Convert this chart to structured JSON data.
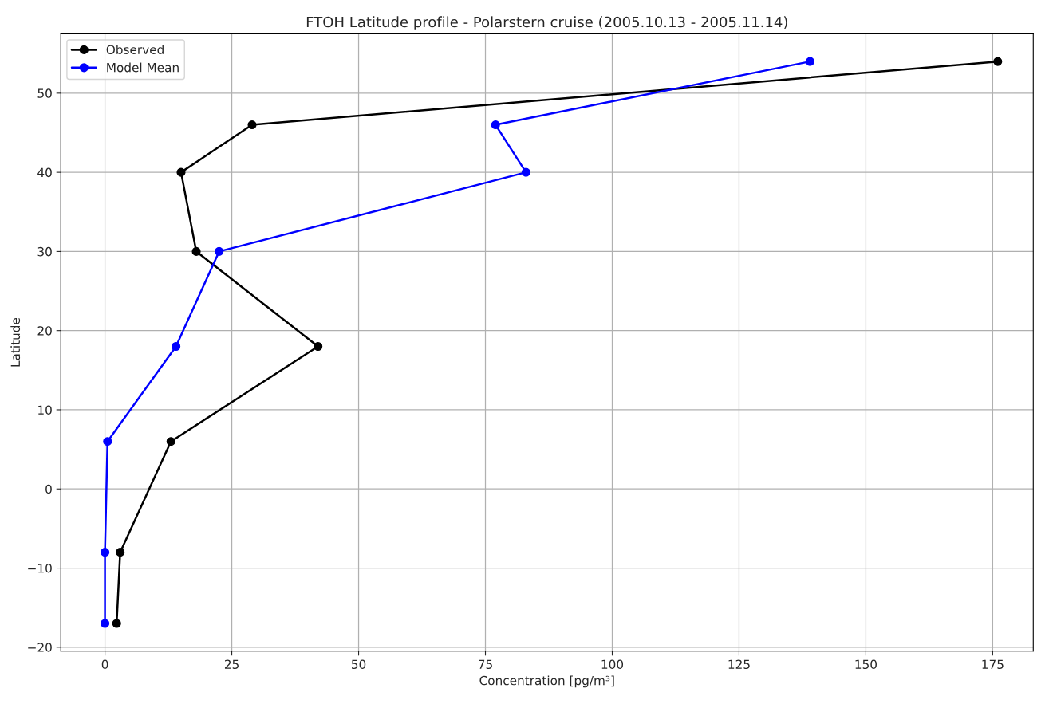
{
  "chart_data": {
    "type": "line",
    "title": "FTOH Latitude profile - Polarstern cruise (2005.10.13 - 2005.11.14)",
    "xlabel": "Concentration [pg/m³]",
    "ylabel": "Latitude",
    "series": [
      {
        "name": "Observed",
        "color": "#000000",
        "x": [
          176,
          29,
          15,
          18,
          42,
          13,
          3,
          2.3
        ],
        "values": [
          54,
          46,
          40,
          30,
          18,
          6,
          -8,
          -17
        ]
      },
      {
        "name": "Model Mean",
        "color": "#0000ff",
        "x": [
          139,
          77,
          83,
          22.5,
          14,
          0.5,
          0,
          0
        ],
        "values": [
          54,
          46,
          40,
          30,
          18,
          6,
          -8,
          -17
        ]
      }
    ],
    "xlim": [
      -8.7,
      183
    ],
    "ylim": [
      -20.5,
      57.5
    ],
    "xticks": [
      0,
      25,
      50,
      75,
      100,
      125,
      150,
      175
    ],
    "yticks": [
      -20,
      -10,
      0,
      10,
      20,
      30,
      40,
      50
    ],
    "grid": true,
    "legend": "top left",
    "marker": "circle",
    "line_style": "solid"
  }
}
